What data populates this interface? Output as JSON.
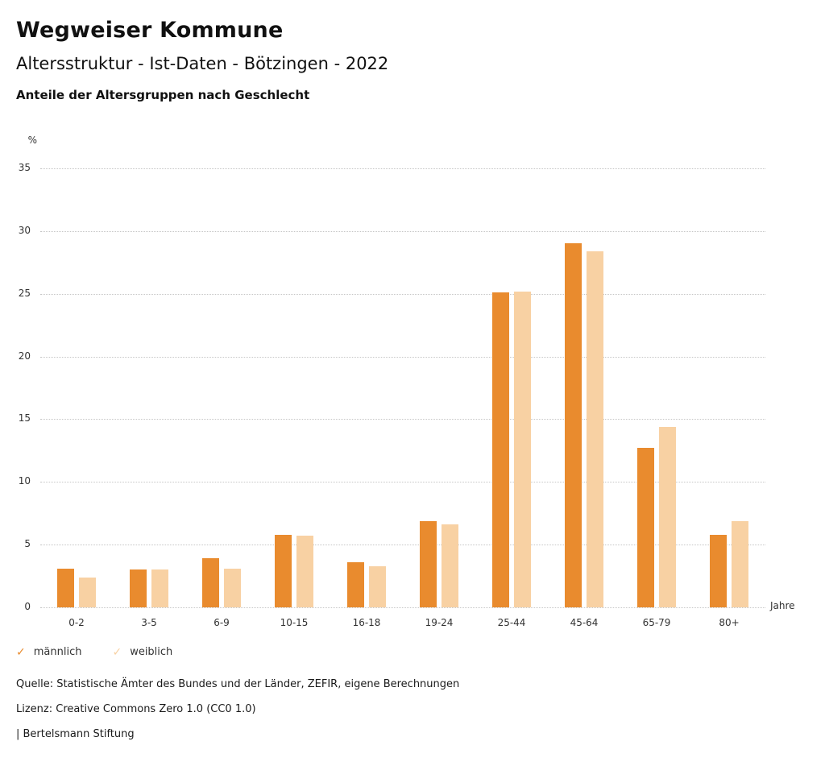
{
  "header": {
    "title": "Wegweiser Kommune",
    "subtitle": "Altersstruktur - Ist-Daten - Bötzingen - 2022"
  },
  "chart_data": {
    "type": "bar",
    "title": "Anteile der Altersgruppen nach Geschlecht",
    "categories": [
      "0-2",
      "3-5",
      "6-9",
      "10-15",
      "16-18",
      "19-24",
      "25-44",
      "45-64",
      "65-79",
      "80+"
    ],
    "series": [
      {
        "name": "männlich",
        "color": "#e98b2e",
        "values": [
          3.1,
          3.0,
          3.9,
          5.8,
          3.6,
          6.9,
          25.1,
          29.0,
          12.7,
          5.8
        ]
      },
      {
        "name": "weiblich",
        "color": "#f8d1a3",
        "values": [
          2.4,
          3.0,
          3.1,
          5.7,
          3.3,
          6.6,
          25.2,
          28.4,
          14.4,
          6.9
        ]
      }
    ],
    "ylabel": "%",
    "xlabel": "Jahre",
    "ylim": [
      0,
      35
    ],
    "ytick_step": 5,
    "grid": true,
    "legend_position": "bottom"
  },
  "footer": {
    "source": "Quelle: Statistische Ämter des Bundes und der Länder, ZEFIR, eigene Berechnungen",
    "license": "Lizenz: Creative Commons Zero 1.0 (CC0 1.0)",
    "attribution": "| Bertelsmann Stiftung"
  },
  "icons": {
    "legend_check": "✓"
  }
}
